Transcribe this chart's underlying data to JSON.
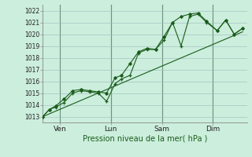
{
  "xlabel": "Pression niveau de la mer( hPa )",
  "background_color": "#cceedd",
  "grid_color": "#99bbbb",
  "line_color": "#1a5c1a",
  "vline_color": "#336633",
  "ylim": [
    1012.5,
    1022.5
  ],
  "xlim": [
    0,
    96
  ],
  "x_ticks": [
    8,
    32,
    56,
    80
  ],
  "x_tick_labels": [
    "Ven",
    "Lun",
    "Sam",
    "Dim"
  ],
  "x_vlines": [
    8,
    32,
    56,
    80
  ],
  "y_ticks": [
    1013,
    1014,
    1015,
    1016,
    1017,
    1018,
    1019,
    1020,
    1021,
    1022
  ],
  "series1_x": [
    0,
    3,
    6,
    10,
    14,
    18,
    22,
    26,
    30,
    34,
    37,
    41,
    45,
    49,
    53,
    57,
    61,
    65,
    69,
    73,
    77,
    82,
    86,
    90,
    94
  ],
  "series1_y": [
    1013.0,
    1013.6,
    1013.8,
    1014.2,
    1015.0,
    1015.2,
    1015.1,
    1015.0,
    1014.3,
    1015.8,
    1016.2,
    1016.5,
    1018.4,
    1018.7,
    1018.7,
    1019.5,
    1021.0,
    1019.0,
    1021.5,
    1021.7,
    1021.0,
    1020.3,
    1021.2,
    1020.0,
    1020.5
  ],
  "series2_x": [
    0,
    3,
    6,
    10,
    14,
    18,
    22,
    26,
    30,
    34,
    37,
    41,
    45,
    49,
    53,
    57,
    61,
    65,
    69,
    73,
    77,
    82,
    86,
    90,
    94
  ],
  "series2_y": [
    1013.0,
    1013.6,
    1013.9,
    1014.5,
    1015.2,
    1015.3,
    1015.2,
    1015.1,
    1015.0,
    1016.3,
    1016.5,
    1017.5,
    1018.5,
    1018.8,
    1018.7,
    1019.8,
    1021.0,
    1021.5,
    1021.7,
    1021.8,
    1021.1,
    1020.3,
    1021.2,
    1020.0,
    1020.5
  ],
  "trend_x": [
    0,
    94
  ],
  "trend_y": [
    1013.0,
    1020.2
  ]
}
